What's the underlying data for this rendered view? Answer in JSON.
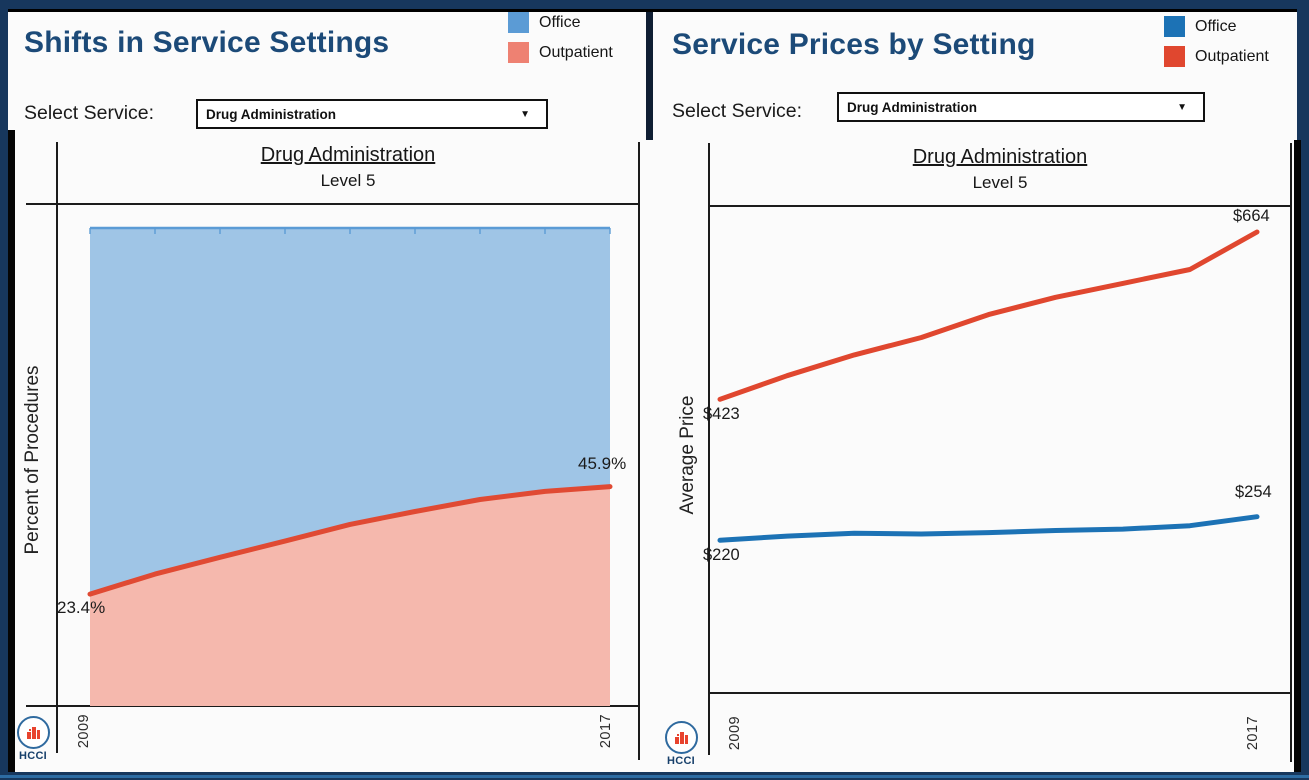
{
  "page": {
    "background_color": "#17375d"
  },
  "left_panel": {
    "title": "Shifts in Service Settings",
    "legend": [
      {
        "label": "Office",
        "color": "#5b9bd5"
      },
      {
        "label": "Outpatient",
        "color": "#ee8172"
      }
    ],
    "select": {
      "label": "Select Service:",
      "value": "Drug Administration",
      "caret": "▼"
    },
    "logo": {
      "text": "HCCI"
    }
  },
  "right_panel": {
    "title": "Service Prices by Setting",
    "legend": [
      {
        "label": "Office",
        "color": "#1c72b5"
      },
      {
        "label": "Outpatient",
        "color": "#e0472f"
      }
    ],
    "select": {
      "label": "Select Service:",
      "value": "Drug Administration",
      "caret": "▼"
    },
    "logo": {
      "text": "HCCI"
    }
  },
  "chart_data": [
    {
      "type": "area",
      "stacked": true,
      "title": "Drug Administration",
      "subtitle": "Level 5",
      "ylabel": "Percent of Procedures",
      "ylim": [
        0,
        100
      ],
      "x": [
        2009,
        2010,
        2011,
        2012,
        2013,
        2014,
        2015,
        2016,
        2017
      ],
      "x_tick_labels": [
        "2009",
        "2017"
      ],
      "series": [
        {
          "name": "Office",
          "fill": "#9fc5e6",
          "edge": "#5b9bd5",
          "values": [
            76.6,
            72.4,
            68.9,
            65.5,
            62.0,
            59.3,
            56.8,
            55.1,
            54.1
          ]
        },
        {
          "name": "Outpatient",
          "fill": "#f5b8ad",
          "edge": "#e04a33",
          "values": [
            23.4,
            27.6,
            31.1,
            34.5,
            38.0,
            40.7,
            43.2,
            44.9,
            45.9
          ]
        }
      ],
      "annotations": [
        {
          "text": "23.4%",
          "x": 2009,
          "series": "Outpatient"
        },
        {
          "text": "45.9%",
          "x": 2017,
          "series": "Outpatient"
        }
      ]
    },
    {
      "type": "line",
      "title": "Drug Administration",
      "subtitle": "Level 5",
      "ylabel": "Average Price",
      "ylim": [
        0,
        700
      ],
      "x": [
        2009,
        2010,
        2011,
        2012,
        2013,
        2014,
        2015,
        2016,
        2017
      ],
      "x_tick_labels": [
        "2009",
        "2017"
      ],
      "series": [
        {
          "name": "Office",
          "color": "#1c72b5",
          "values": [
            220,
            226,
            230,
            229,
            231,
            234,
            236,
            241,
            254
          ]
        },
        {
          "name": "Outpatient",
          "color": "#e0472f",
          "values": [
            423,
            457,
            487,
            512,
            545,
            570,
            590,
            610,
            664
          ]
        }
      ],
      "annotations": [
        {
          "text": "$423",
          "x": 2009,
          "series": "Outpatient"
        },
        {
          "text": "$664",
          "x": 2017,
          "series": "Outpatient"
        },
        {
          "text": "$220",
          "x": 2009,
          "series": "Office"
        },
        {
          "text": "$254",
          "x": 2017,
          "series": "Office"
        }
      ]
    }
  ]
}
